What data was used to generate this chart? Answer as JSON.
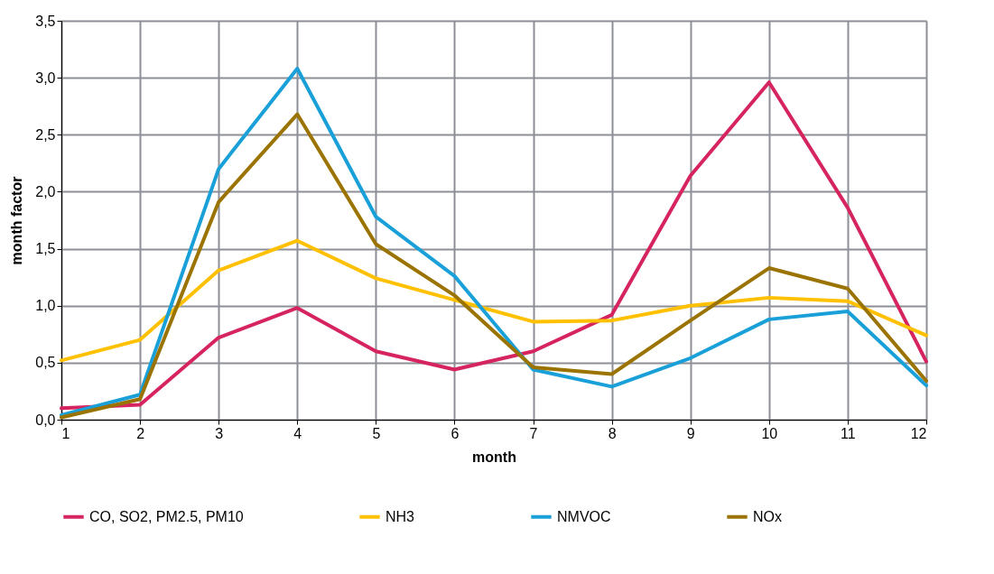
{
  "chart_data": {
    "type": "line",
    "xlabel": "month",
    "ylabel": "month factor",
    "x": [
      1,
      2,
      3,
      4,
      5,
      6,
      7,
      8,
      9,
      10,
      11,
      12
    ],
    "xlim": [
      1,
      12
    ],
    "xticks": [
      1,
      2,
      3,
      4,
      5,
      6,
      7,
      8,
      9,
      10,
      11,
      12
    ],
    "ylim": [
      0,
      3.5
    ],
    "yticks": [
      {
        "value": 0,
        "label": "0,0"
      },
      {
        "value": 0.5,
        "label": "0,5"
      },
      {
        "value": 1,
        "label": "1,0"
      },
      {
        "value": 1.5,
        "label": "1,5"
      },
      {
        "value": 2,
        "label": "2,0"
      },
      {
        "value": 2.5,
        "label": "2,5"
      },
      {
        "value": 3,
        "label": "3,0"
      },
      {
        "value": 3.5,
        "label": "3,5"
      }
    ],
    "grid": true,
    "legend": "bottom",
    "marker": "none",
    "line_style": "solid",
    "series": [
      {
        "name": "CO, SO2, PM2.5, PM10",
        "color": "#d6245f",
        "values": [
          0.1,
          0.13,
          0.72,
          0.98,
          0.6,
          0.44,
          0.6,
          0.92,
          2.14,
          2.96,
          1.86,
          0.51
        ]
      },
      {
        "name": "NH3",
        "color": "#ffc000",
        "values": [
          0.52,
          0.7,
          1.31,
          1.57,
          1.24,
          1.05,
          0.86,
          0.87,
          1.0,
          1.07,
          1.04,
          0.74
        ]
      },
      {
        "name": "NMVOC",
        "color": "#1aa0d8",
        "values": [
          0.04,
          0.22,
          2.2,
          3.08,
          1.78,
          1.26,
          0.44,
          0.29,
          0.54,
          0.88,
          0.95,
          0.3
        ]
      },
      {
        "name": "NOx",
        "color": "#9a7300",
        "values": [
          0.02,
          0.18,
          1.91,
          2.68,
          1.54,
          1.09,
          0.46,
          0.4,
          0.87,
          1.33,
          1.15,
          0.34
        ]
      }
    ]
  }
}
